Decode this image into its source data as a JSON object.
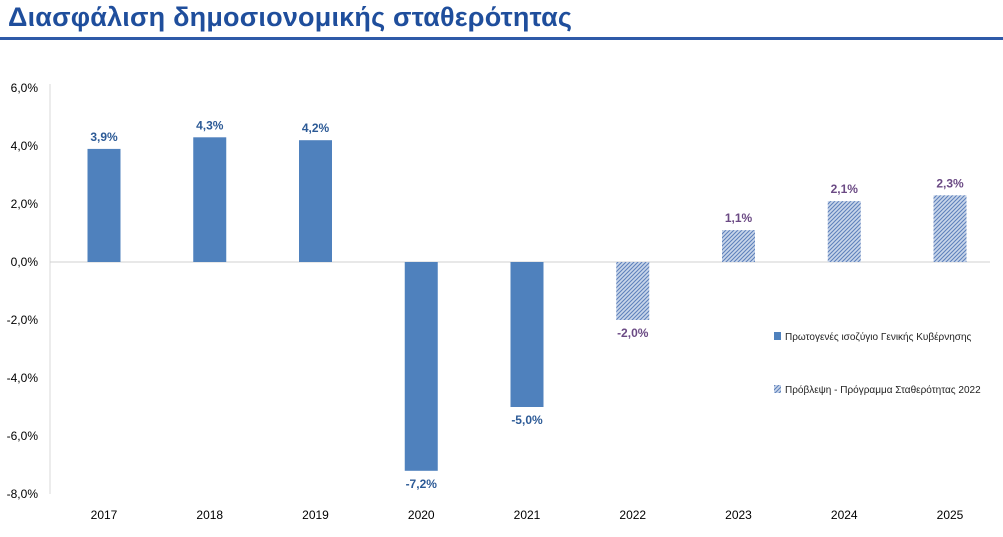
{
  "title": "Διασφάλιση δημοσιονομικής σταθερότητας",
  "colors": {
    "title": "#1f4e9c",
    "actual_bar": "#4f81bd",
    "forecast_bar": "#9bb3d6",
    "actual_label": "#2c5a96",
    "forecast_label": "#6b4a84",
    "rule": "#2f5aa8"
  },
  "chart_data": {
    "type": "bar",
    "categories": [
      "2017",
      "2018",
      "2019",
      "2020",
      "2021",
      "2022",
      "2023",
      "2024",
      "2025"
    ],
    "series": [
      {
        "name": "Πρωτογενές ισοζύγιο Γενικής Κυβέρνησης",
        "style": "solid",
        "values": [
          3.9,
          4.3,
          4.2,
          -7.2,
          -5.0,
          null,
          null,
          null,
          null
        ],
        "labels": [
          "3,9%",
          "4,3%",
          "4,2%",
          "-7,2%",
          "-5,0%",
          null,
          null,
          null,
          null
        ]
      },
      {
        "name": "Πρόβλεψη - Πρόγραμμα Σταθερότητας 2022",
        "style": "hatched",
        "values": [
          null,
          null,
          null,
          null,
          null,
          -2.0,
          1.1,
          2.1,
          2.3
        ],
        "labels": [
          null,
          null,
          null,
          null,
          null,
          "-2,0%",
          "1,1%",
          "2,1%",
          "2,3%"
        ]
      }
    ],
    "ylim": [
      -8,
      6
    ],
    "yticks": [
      6,
      4,
      2,
      0,
      -2,
      -4,
      -6,
      -8
    ],
    "ytick_labels": [
      "6,0%",
      "4,0%",
      "2,0%",
      "0,0%",
      "-2,0%",
      "-4,0%",
      "-6,0%",
      "-8,0%"
    ],
    "xlabel": "",
    "ylabel": "",
    "legend_position": "right"
  }
}
